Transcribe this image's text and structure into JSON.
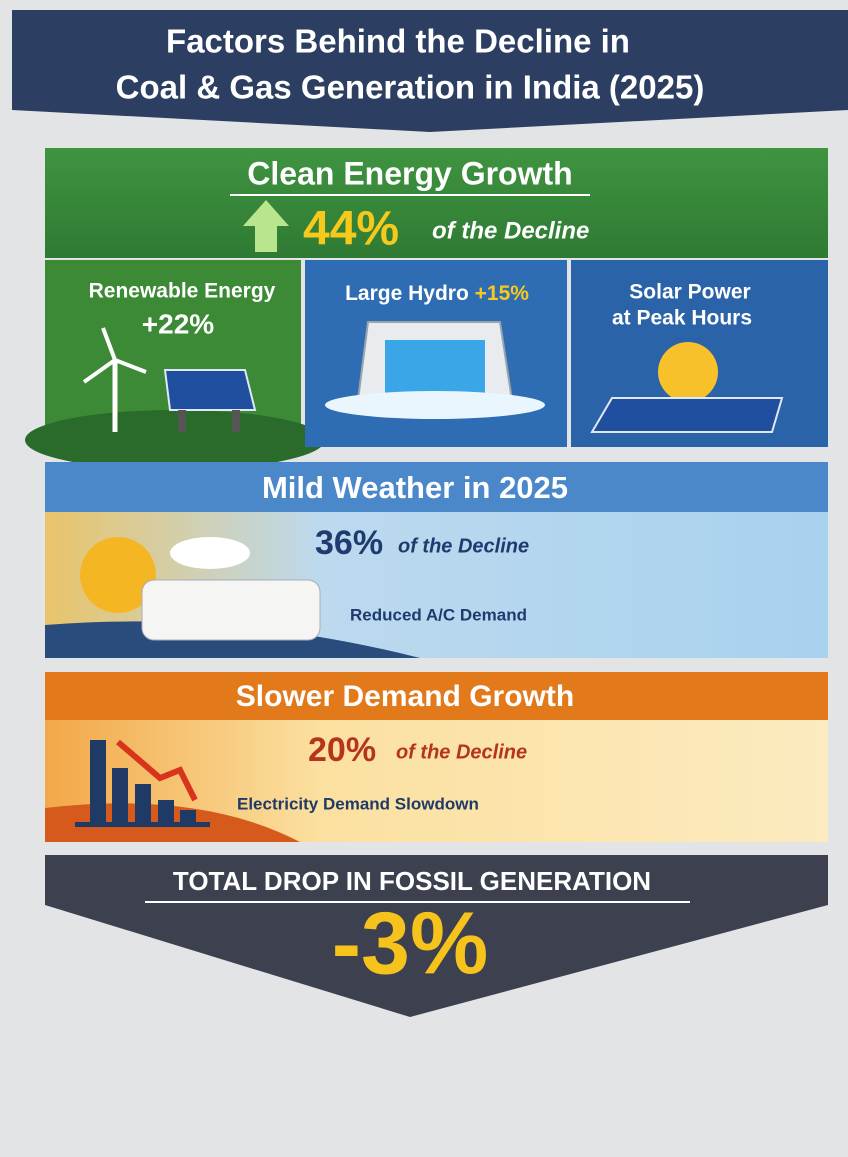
{
  "header": {
    "title_lines": [
      "Factors Behind the Decline in",
      "Coal & Gas Generation in India (2025)"
    ]
  },
  "sections": [
    {
      "title": "Clean Energy Growth",
      "share": "44%",
      "share_text": "of the Decline",
      "items": [
        {
          "label": "Renewable Energy",
          "value": "+22%"
        },
        {
          "label": "Large Hydro",
          "value": "+15%"
        },
        {
          "label": "Solar Power",
          "detail": "at Peak Hours"
        }
      ]
    },
    {
      "title": "Mild Weather in 2025",
      "share": "36%",
      "share_text": "of the Decline",
      "caption": "Reduced A/C Demand"
    },
    {
      "title": "Slower Demand Growth",
      "share": "20%",
      "share_text": "of the Decline",
      "caption": "Electricity Demand Slowdown"
    }
  ],
  "total": {
    "label": "TOTAL DROP IN FOSSIL GENERATION",
    "value": "-3%"
  }
}
